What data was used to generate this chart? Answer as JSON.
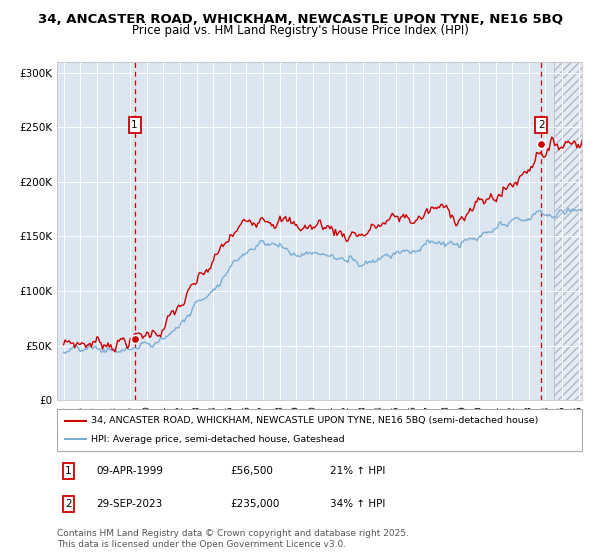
{
  "title_line1": "34, ANCASTER ROAD, WHICKHAM, NEWCASTLE UPON TYNE, NE16 5BQ",
  "title_line2": "Price paid vs. HM Land Registry's House Price Index (HPI)",
  "title_fontsize": 9.5,
  "subtitle_fontsize": 8.5,
  "ylim": [
    0,
    310000
  ],
  "yticks": [
    0,
    50000,
    100000,
    150000,
    200000,
    250000,
    300000
  ],
  "ytick_labels": [
    "£0",
    "£50K",
    "£100K",
    "£150K",
    "£200K",
    "£250K",
    "£300K"
  ],
  "xlim_start": 1994.6,
  "xlim_end": 2026.2,
  "background_color": "#dce6f1",
  "grid_color": "#ffffff",
  "red_line_color": "#cc0000",
  "blue_line_color": "#7aadd4",
  "dashed_line_color": "#cc0000",
  "marker1_x": 1999.27,
  "marker1_y": 56500,
  "marker2_x": 2023.75,
  "marker2_y": 235000,
  "legend_red": "34, ANCASTER ROAD, WHICKHAM, NEWCASTLE UPON TYNE, NE16 5BQ (semi-detached house)",
  "legend_blue": "HPI: Average price, semi-detached house, Gateshead",
  "annotation1_date": "09-APR-1999",
  "annotation1_price": "£56,500",
  "annotation1_hpi": "21% ↑ HPI",
  "annotation2_date": "29-SEP-2023",
  "annotation2_price": "£235,000",
  "annotation2_hpi": "34% ↑ HPI",
  "footer": "Contains HM Land Registry data © Crown copyright and database right 2025.\nThis data is licensed under the Open Government Licence v3.0.",
  "footer_fontsize": 6.5
}
